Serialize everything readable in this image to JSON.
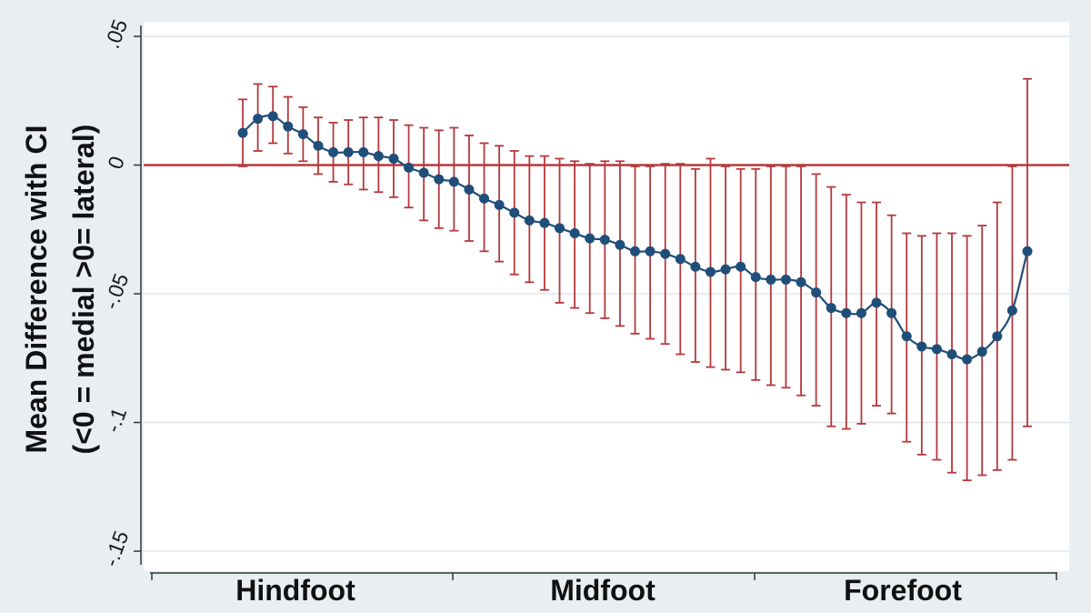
{
  "chart_data": {
    "type": "line",
    "ylabel_line1": "Mean Difference with CI",
    "ylabel_line2": "(<0 = medial >0= lateral)",
    "ylim": [
      -0.15,
      0.05
    ],
    "yticks": [
      {
        "value": 0.05,
        "label": ".05"
      },
      {
        "value": 0,
        "label": "0"
      },
      {
        "value": -0.05,
        "label": "-.05"
      },
      {
        "value": -0.1,
        "label": "-.1"
      },
      {
        "value": -0.15,
        "label": "-.15"
      }
    ],
    "categories": [
      "Hindfoot",
      "Midfoot",
      "Forefoot"
    ],
    "grid": true,
    "reference_line": 0,
    "colors": {
      "background": "#e8eef2",
      "plot_background": "#ffffff",
      "grid": "#e2e6e8",
      "series": "#1f4e79",
      "error_bars": "#b5383c",
      "reference_line": "#b5383c"
    },
    "series": [
      {
        "mean": [
          0.0125,
          0.018,
          0.019,
          0.015,
          0.012,
          0.0075,
          0.005,
          0.005,
          0.005,
          0.0035,
          0.0025,
          -0.001,
          -0.003,
          -0.0055,
          -0.0065,
          -0.0095,
          -0.013,
          -0.0155,
          -0.0185,
          -0.0215,
          -0.0225,
          -0.0245,
          -0.0265,
          -0.0285,
          -0.029,
          -0.031,
          -0.0335,
          -0.0335,
          -0.0345,
          -0.0365,
          -0.0395,
          -0.0415,
          -0.0405,
          -0.0395,
          -0.0435,
          -0.0445,
          -0.0445,
          -0.0455,
          -0.0495,
          -0.0555,
          -0.0575,
          -0.0575,
          -0.0535,
          -0.0575,
          -0.0665,
          -0.0705,
          -0.0715,
          -0.0735,
          -0.0755,
          -0.0725,
          -0.0665,
          -0.0565,
          -0.0335
        ],
        "lower": [
          -0.0005,
          0.0055,
          0.0085,
          0.0045,
          0.0015,
          -0.0035,
          -0.0065,
          -0.0075,
          -0.0095,
          -0.0105,
          -0.0125,
          -0.0165,
          -0.0215,
          -0.0245,
          -0.0255,
          -0.0295,
          -0.0335,
          -0.0375,
          -0.0425,
          -0.0455,
          -0.0485,
          -0.0535,
          -0.0555,
          -0.0575,
          -0.0595,
          -0.0625,
          -0.0655,
          -0.0675,
          -0.0695,
          -0.0735,
          -0.0765,
          -0.0785,
          -0.0795,
          -0.0805,
          -0.0835,
          -0.0855,
          -0.0865,
          -0.0895,
          -0.0935,
          -0.1015,
          -0.1025,
          -0.1005,
          -0.0935,
          -0.0965,
          -0.1075,
          -0.1125,
          -0.1145,
          -0.1195,
          -0.1225,
          -0.1205,
          -0.1185,
          -0.1145,
          -0.1015
        ],
        "upper": [
          0.0255,
          0.0315,
          0.0305,
          0.0265,
          0.0225,
          0.0185,
          0.0165,
          0.0175,
          0.0185,
          0.0185,
          0.0175,
          0.0155,
          0.0145,
          0.0135,
          0.0145,
          0.0115,
          0.0085,
          0.0075,
          0.0055,
          0.0035,
          0.0035,
          0.0025,
          0.0015,
          0.0005,
          0.0015,
          0.0015,
          -0.0005,
          -0.0005,
          0.0005,
          0.0005,
          -0.0015,
          0.0025,
          -0.0005,
          -0.0015,
          -0.0015,
          -0.0005,
          -0.0005,
          -0.0005,
          -0.0035,
          -0.0085,
          -0.0115,
          -0.0145,
          -0.0145,
          -0.0195,
          -0.0265,
          -0.0275,
          -0.0265,
          -0.0265,
          -0.0275,
          -0.0235,
          -0.0145,
          -0.0005,
          0.0335
        ]
      }
    ]
  }
}
